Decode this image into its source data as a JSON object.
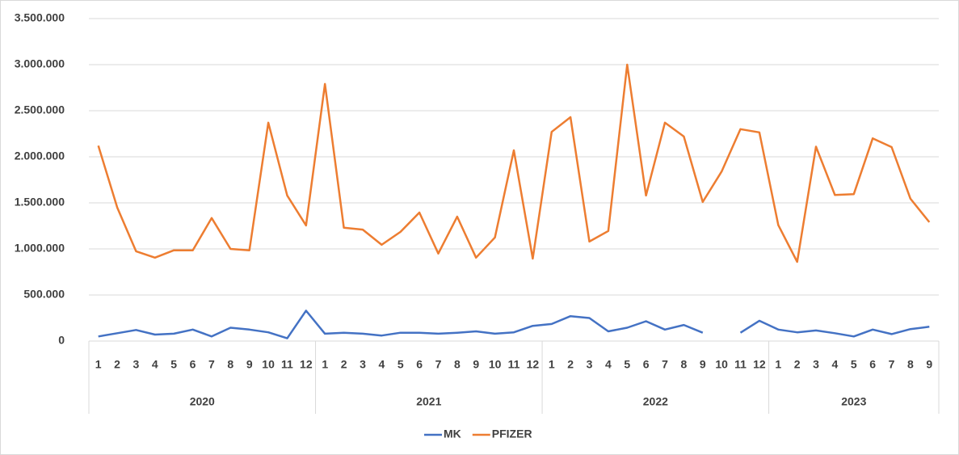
{
  "chart_data": {
    "type": "line",
    "groups": [
      {
        "label": "2020",
        "categories": [
          "1",
          "2",
          "3",
          "4",
          "5",
          "6",
          "7",
          "8",
          "9",
          "10",
          "11",
          "12"
        ]
      },
      {
        "label": "2021",
        "categories": [
          "1",
          "2",
          "3",
          "4",
          "5",
          "6",
          "7",
          "8",
          "9",
          "10",
          "11",
          "12"
        ]
      },
      {
        "label": "2022",
        "categories": [
          "1",
          "2",
          "3",
          "4",
          "5",
          "6",
          "7",
          "8",
          "9",
          "10",
          "11",
          "12"
        ]
      },
      {
        "label": "2023",
        "categories": [
          "1",
          "2",
          "3",
          "4",
          "5",
          "6",
          "7",
          "8",
          "9"
        ]
      }
    ],
    "series": [
      {
        "name": "MK",
        "color": "#4472c4",
        "values": [
          50000,
          85000,
          120000,
          70000,
          80000,
          125000,
          50000,
          145000,
          125000,
          95000,
          30000,
          330000,
          80000,
          90000,
          80000,
          60000,
          90000,
          90000,
          80000,
          90000,
          105000,
          80000,
          95000,
          165000,
          185000,
          270000,
          250000,
          105000,
          145000,
          215000,
          125000,
          175000,
          90000,
          null,
          90000,
          220000,
          125000,
          95000,
          115000,
          85000,
          50000,
          125000,
          75000,
          130000,
          155000
        ]
      },
      {
        "name": "PFIZER",
        "color": "#ed7d31",
        "values": [
          2120000,
          1450000,
          975000,
          905000,
          985000,
          985000,
          1335000,
          1000000,
          985000,
          2370000,
          1580000,
          1255000,
          2790000,
          1230000,
          1210000,
          1045000,
          1185000,
          1395000,
          950000,
          1350000,
          905000,
          1125000,
          2070000,
          895000,
          2270000,
          2430000,
          1080000,
          1195000,
          3000000,
          1580000,
          2370000,
          2220000,
          1510000,
          1840000,
          2300000,
          2265000,
          1260000,
          860000,
          2110000,
          1585000,
          1595000,
          2200000,
          2105000,
          1545000,
          1290000
        ]
      }
    ],
    "ylim": [
      0,
      3500000
    ],
    "yticks": [
      0,
      {
        "value": 500000,
        "label": "500.000"
      },
      {
        "value": 1000000,
        "label": "1.000.000"
      },
      {
        "value": 1500000,
        "label": "1.500.000"
      },
      {
        "value": 2000000,
        "label": "2.000.000"
      },
      {
        "value": 2500000,
        "label": "2.500.000"
      },
      {
        "value": 3000000,
        "label": "3.000.000"
      },
      {
        "value": 3500000,
        "label": "3.500.000"
      }
    ],
    "grid": true,
    "legend": "bottom"
  }
}
